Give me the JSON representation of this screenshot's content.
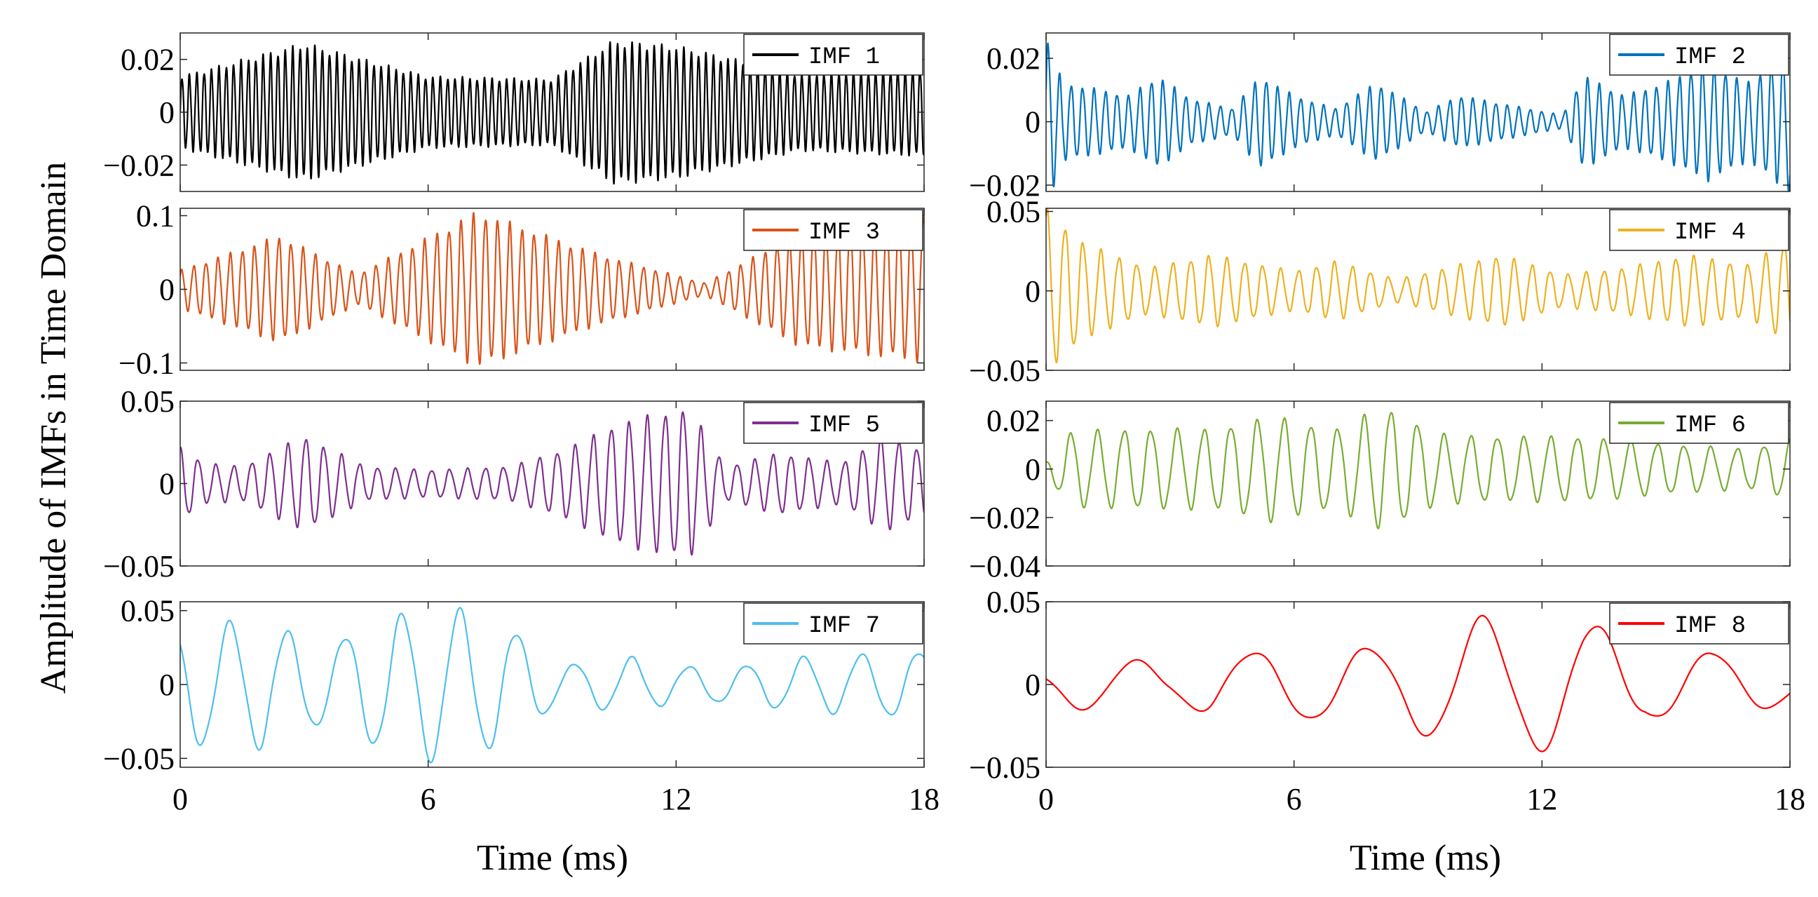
{
  "figure": {
    "ylabel": "Amplitude of IMFs in Time Domain",
    "xlabel_left": "Time (ms)",
    "xlabel_right": "Time (ms)"
  },
  "chart_data": [
    {
      "type": "line",
      "series": [
        {
          "name": "IMF 1",
          "color": "#000000"
        }
      ],
      "xlim": [
        0,
        18
      ],
      "ylim": [
        -0.03,
        0.03
      ],
      "yticks": [
        -0.02,
        0,
        0.02
      ],
      "ytick_labels": [
        "−0.02",
        "0",
        "0.02"
      ],
      "xticks": [
        0,
        6,
        12,
        18
      ],
      "xtick_labels": [],
      "freq_per_ms": 5.6,
      "envelope": [
        [
          0,
          0.013
        ],
        [
          3,
          0.025
        ],
        [
          6,
          0.013
        ],
        [
          9,
          0.012
        ],
        [
          10.5,
          0.026
        ],
        [
          12,
          0.024
        ],
        [
          15,
          0.014
        ],
        [
          18,
          0.016
        ]
      ]
    },
    {
      "type": "line",
      "series": [
        {
          "name": "IMF 2",
          "color": "#0072BD"
        }
      ],
      "xlim": [
        0,
        18
      ],
      "ylim": [
        -0.022,
        0.028
      ],
      "yticks": [
        -0.02,
        0,
        0.02
      ],
      "ytick_labels": [
        "−0.02",
        "0",
        "0.02"
      ],
      "xticks": [
        0,
        6,
        12,
        18
      ],
      "xtick_labels": [],
      "freq_per_ms": 3.6,
      "envelope": [
        [
          0,
          0.026
        ],
        [
          0.4,
          0.012
        ],
        [
          2,
          0.008
        ],
        [
          2.7,
          0.014
        ],
        [
          3.5,
          0.007
        ],
        [
          4.5,
          0.004
        ],
        [
          5.2,
          0.014
        ],
        [
          6,
          0.008
        ],
        [
          7,
          0.004
        ],
        [
          8,
          0.012
        ],
        [
          9.2,
          0.003
        ],
        [
          10,
          0.008
        ],
        [
          12.5,
          0.002
        ],
        [
          13,
          0.014
        ],
        [
          14,
          0.008
        ],
        [
          15,
          0.012
        ],
        [
          16,
          0.018
        ],
        [
          17,
          0.012
        ],
        [
          18,
          0.022
        ]
      ]
    },
    {
      "type": "line",
      "series": [
        {
          "name": "IMF 3",
          "color": "#D95319"
        }
      ],
      "xlim": [
        0,
        18
      ],
      "ylim": [
        -0.11,
        0.11
      ],
      "yticks": [
        -0.1,
        0,
        0.1
      ],
      "ytick_labels": [
        "−0.1",
        "0",
        "0.1"
      ],
      "xticks": [
        0,
        6,
        12,
        18
      ],
      "xtick_labels": [],
      "freq_per_ms": 3.4,
      "envelope": [
        [
          0,
          0.025
        ],
        [
          2.4,
          0.07
        ],
        [
          4.3,
          0.02
        ],
        [
          7.2,
          0.102
        ],
        [
          10.2,
          0.045
        ],
        [
          12.7,
          0.008
        ],
        [
          15,
          0.075
        ],
        [
          18,
          0.095
        ]
      ]
    },
    {
      "type": "line",
      "series": [
        {
          "name": "IMF 4",
          "color": "#EDB120"
        }
      ],
      "xlim": [
        0,
        18
      ],
      "ylim": [
        -0.05,
        0.052
      ],
      "yticks": [
        -0.05,
        0,
        0.05
      ],
      "ytick_labels": [
        "−0.05",
        "0",
        "0.05"
      ],
      "xticks": [
        0,
        6,
        12,
        18
      ],
      "xtick_labels": [],
      "freq_per_ms": 2.3,
      "envelope": [
        [
          0,
          0.05
        ],
        [
          1,
          0.028
        ],
        [
          2.5,
          0.014
        ],
        [
          4,
          0.022
        ],
        [
          6,
          0.012
        ],
        [
          7,
          0.018
        ],
        [
          8.5,
          0.007
        ],
        [
          10,
          0.016
        ],
        [
          11,
          0.022
        ],
        [
          12.5,
          0.01
        ],
        [
          14,
          0.014
        ],
        [
          15.5,
          0.022
        ],
        [
          17,
          0.016
        ],
        [
          18,
          0.032
        ]
      ]
    },
    {
      "type": "line",
      "series": [
        {
          "name": "IMF 5",
          "color": "#7E2F8E"
        }
      ],
      "xlim": [
        0,
        18
      ],
      "ylim": [
        -0.05,
        0.05
      ],
      "yticks": [
        -0.05,
        0,
        0.05
      ],
      "ytick_labels": [
        "−0.05",
        "0",
        "0.05"
      ],
      "xticks": [
        0,
        6,
        12,
        18
      ],
      "xtick_labels": [],
      "freq_per_ms": 2.3,
      "envelope": [
        [
          0,
          0.022
        ],
        [
          0.6,
          0.012
        ],
        [
          1.5,
          0.01
        ],
        [
          3,
          0.028
        ],
        [
          4.5,
          0.01
        ],
        [
          6,
          0.008
        ],
        [
          8,
          0.01
        ],
        [
          9.5,
          0.022
        ],
        [
          10.5,
          0.035
        ],
        [
          12.3,
          0.045
        ],
        [
          13.2,
          0.01
        ],
        [
          14.5,
          0.018
        ],
        [
          16,
          0.012
        ],
        [
          17,
          0.028
        ],
        [
          18,
          0.02
        ]
      ]
    },
    {
      "type": "line",
      "series": [
        {
          "name": "IMF 6",
          "color": "#77AC30"
        }
      ],
      "xlim": [
        0,
        18
      ],
      "ylim": [
        -0.04,
        0.028
      ],
      "yticks": [
        -0.04,
        -0.02,
        0,
        0.02
      ],
      "ytick_labels": [
        "−0.04",
        "−0.02",
        "0",
        "0.02"
      ],
      "xticks": [
        0,
        6,
        12,
        18
      ],
      "xtick_labels": [],
      "freq_per_ms": 1.55,
      "envelope": [
        [
          0,
          0.003
        ],
        [
          0.6,
          0.015
        ],
        [
          2,
          0.016
        ],
        [
          4,
          0.016
        ],
        [
          5.5,
          0.021
        ],
        [
          7,
          0.016
        ],
        [
          8.2,
          0.025
        ],
        [
          9.5,
          0.014
        ],
        [
          11,
          0.013
        ],
        [
          13,
          0.013
        ],
        [
          15,
          0.01
        ],
        [
          17,
          0.008
        ],
        [
          18,
          0.012
        ]
      ]
    },
    {
      "type": "line",
      "series": [
        {
          "name": "IMF 7",
          "color": "#4DBEEE"
        }
      ],
      "xlim": [
        0,
        18
      ],
      "ylim": [
        -0.056,
        0.056
      ],
      "yticks": [
        -0.05,
        0,
        0.05
      ],
      "ytick_labels": [
        "−0.05",
        "0",
        "0.05"
      ],
      "xticks": [
        0,
        6,
        12,
        18
      ],
      "xtick_labels": [
        "0",
        "6",
        "12",
        "18"
      ],
      "freq_per_ms": 0.72,
      "envelope": [
        [
          0,
          0.04
        ],
        [
          2,
          0.042
        ],
        [
          3.5,
          0.026
        ],
        [
          5,
          0.045
        ],
        [
          6.5,
          0.052
        ],
        [
          8,
          0.038
        ],
        [
          9.2,
          0.012
        ],
        [
          10,
          0.016
        ],
        [
          11,
          0.018
        ],
        [
          12,
          0.012
        ],
        [
          13.5,
          0.012
        ],
        [
          15,
          0.018
        ],
        [
          16.5,
          0.02
        ],
        [
          18,
          0.022
        ]
      ]
    },
    {
      "type": "line",
      "series": [
        {
          "name": "IMF 8",
          "color": "#FF0000"
        }
      ],
      "xlim": [
        0,
        18
      ],
      "ylim": [
        -0.05,
        0.05
      ],
      "yticks": [
        -0.05,
        0,
        0.05
      ],
      "ytick_labels": [
        "−0.05",
        "0",
        "0.05"
      ],
      "xticks": [
        0,
        6,
        12,
        18
      ],
      "xtick_labels": [
        "0",
        "6",
        "12",
        "18"
      ],
      "freq_per_ms": 0.36,
      "envelope": [
        [
          0,
          0.01
        ],
        [
          1.5,
          0.018
        ],
        [
          3,
          0.01
        ],
        [
          4,
          0.018
        ],
        [
          5.5,
          0.02
        ],
        [
          7,
          0.022
        ],
        [
          8.5,
          0.022
        ],
        [
          10,
          0.04
        ],
        [
          11.5,
          0.038
        ],
        [
          13,
          0.04
        ],
        [
          14.5,
          0.02
        ],
        [
          16,
          0.02
        ],
        [
          18,
          0.012
        ]
      ]
    }
  ]
}
